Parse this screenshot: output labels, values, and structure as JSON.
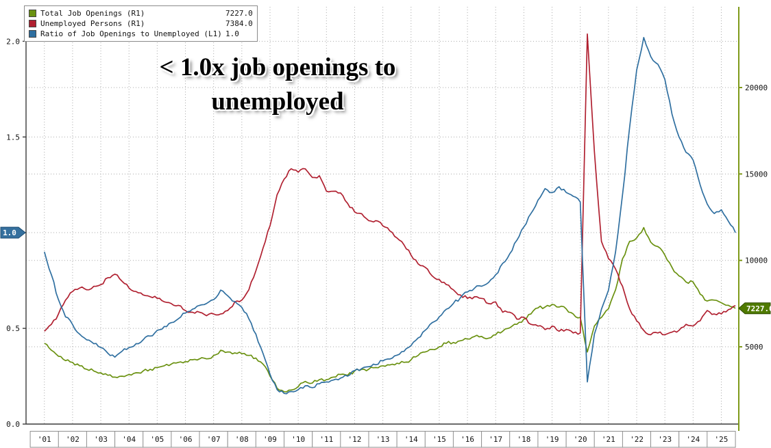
{
  "chart_data": {
    "type": "line",
    "annotation": "< 1.0x job openings to\nunemployed",
    "legend": {
      "items": [
        {
          "label": "Total Job Openings (R1)",
          "value": "7227.0",
          "color": "#6a9110"
        },
        {
          "label": "Unemployed Persons (R1)",
          "value": "7384.0",
          "color": "#b02030"
        },
        {
          "label": "Ratio of Job Openings to Unemployed (L1)",
          "value": "1.0",
          "color": "#2f6fa0"
        }
      ]
    },
    "x_ticks": [
      "'01",
      "'02",
      "'03",
      "'04",
      "'05",
      "'06",
      "'07",
      "'08",
      "'09",
      "'10",
      "'11",
      "'12",
      "'13",
      "'14",
      "'15",
      "'16",
      "'17",
      "'18",
      "'19",
      "'20",
      "'21",
      "'22",
      "'23",
      "'24",
      "'25"
    ],
    "x_tick_years": [
      2001,
      2002,
      2003,
      2004,
      2005,
      2006,
      2007,
      2008,
      2009,
      2010,
      2011,
      2012,
      2013,
      2014,
      2015,
      2016,
      2017,
      2018,
      2019,
      2020,
      2021,
      2022,
      2023,
      2024,
      2025
    ],
    "x_range": [
      2000.35,
      2025.62
    ],
    "x_start": 2001.0,
    "x_step": 0.25,
    "left_axis": {
      "ticks": [
        0.0,
        0.5,
        1.0,
        1.5,
        2.0
      ],
      "range": [
        0,
        2.18
      ],
      "grid": true,
      "badge": {
        "value": "1.0",
        "at": 1.0,
        "color": "#35709e",
        "border": "#1d4e74"
      }
    },
    "right_axis": {
      "ticks": [
        5000,
        10000,
        15000,
        20000
      ],
      "range": [
        530,
        24670
      ],
      "grid": true,
      "axis_color": "#7f9a1a",
      "badge": {
        "value": "7227.0",
        "at": 7227,
        "color": "#4f7a00",
        "border": "#2f4a00"
      }
    },
    "series": [
      {
        "id": "total-job-openings",
        "name": "Total Job Openings",
        "axis": "R",
        "color": "#6a9110",
        "values": [
          5200,
          4800,
          4450,
          4200,
          4100,
          3900,
          3700,
          3600,
          3500,
          3350,
          3250,
          3300,
          3400,
          3500,
          3600,
          3700,
          3800,
          3900,
          4000,
          4100,
          4150,
          4250,
          4300,
          4300,
          4500,
          4800,
          4700,
          4650,
          4600,
          4500,
          4350,
          4000,
          3300,
          2600,
          2400,
          2500,
          2700,
          3000,
          2900,
          3100,
          3100,
          3250,
          3400,
          3350,
          3600,
          3700,
          3700,
          3800,
          3900,
          3950,
          4050,
          4100,
          4250,
          4500,
          4700,
          4850,
          5000,
          5200,
          5250,
          5350,
          5450,
          5600,
          5600,
          5500,
          5700,
          5900,
          6100,
          6300,
          6600,
          6900,
          7250,
          7300,
          7450,
          7300,
          7200,
          6900,
          6700,
          4700,
          6200,
          6700,
          7200,
          8300,
          10100,
          11100,
          11300,
          11900,
          11050,
          10800,
          10300,
          9600,
          9100,
          8750,
          8750,
          8050,
          7650,
          7700,
          7550,
          7400,
          7227
        ]
      },
      {
        "id": "unemployed-persons",
        "name": "Unemployed Persons",
        "axis": "R",
        "color": "#b02030",
        "values": [
          5900,
          6300,
          6900,
          7700,
          8200,
          8400,
          8300,
          8500,
          8600,
          9000,
          9200,
          8800,
          8400,
          8200,
          8000,
          7900,
          7800,
          7600,
          7500,
          7400,
          7100,
          7000,
          7000,
          6800,
          6900,
          6900,
          7100,
          7600,
          7700,
          8300,
          9400,
          10700,
          12000,
          13800,
          14700,
          15300,
          15100,
          15300,
          14800,
          14900,
          14000,
          14000,
          13900,
          13300,
          12800,
          12700,
          12300,
          12300,
          12000,
          11700,
          11300,
          10900,
          10300,
          9800,
          9600,
          9100,
          8900,
          8600,
          8300,
          8000,
          7800,
          7900,
          7800,
          7500,
          7600,
          7000,
          7000,
          6600,
          6700,
          6300,
          6200,
          6000,
          6200,
          5900,
          6000,
          5800,
          5800,
          23100,
          16300,
          11100,
          10100,
          9500,
          8500,
          7200,
          6500,
          5950,
          5700,
          5800,
          5700,
          5850,
          5950,
          6300,
          6200,
          6500,
          7100,
          6900,
          6900,
          7150,
          7384
        ]
      },
      {
        "id": "job-openings-unemployed-ratio",
        "name": "Ratio of Job Openings to Unemployed",
        "axis": "L",
        "color": "#2f6fa0",
        "values": [
          0.9,
          0.78,
          0.65,
          0.56,
          0.52,
          0.47,
          0.44,
          0.42,
          0.4,
          0.37,
          0.35,
          0.38,
          0.4,
          0.42,
          0.44,
          0.46,
          0.49,
          0.51,
          0.53,
          0.55,
          0.58,
          0.6,
          0.62,
          0.63,
          0.65,
          0.7,
          0.67,
          0.64,
          0.61,
          0.55,
          0.47,
          0.37,
          0.26,
          0.18,
          0.16,
          0.17,
          0.18,
          0.2,
          0.19,
          0.21,
          0.22,
          0.23,
          0.24,
          0.25,
          0.28,
          0.29,
          0.3,
          0.31,
          0.33,
          0.34,
          0.36,
          0.38,
          0.41,
          0.45,
          0.49,
          0.53,
          0.56,
          0.6,
          0.63,
          0.66,
          0.69,
          0.71,
          0.72,
          0.74,
          0.78,
          0.84,
          0.89,
          0.96,
          1.03,
          1.1,
          1.17,
          1.23,
          1.21,
          1.24,
          1.21,
          1.19,
          1.16,
          0.22,
          0.47,
          0.6,
          0.7,
          0.9,
          1.2,
          1.55,
          1.85,
          2.02,
          1.92,
          1.88,
          1.8,
          1.62,
          1.5,
          1.42,
          1.38,
          1.25,
          1.15,
          1.1,
          1.12,
          1.06,
          1.0
        ]
      }
    ]
  }
}
